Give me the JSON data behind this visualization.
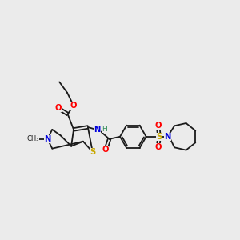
{
  "background_color": "#ebebeb",
  "bond_color": "#1a1a1a",
  "figsize": [
    3.0,
    3.0
  ],
  "dpi": 100,
  "colors": {
    "S": "#c8a800",
    "N": "#0000dd",
    "O": "#ff0000",
    "C": "#1a1a1a",
    "H": "#2e8b57",
    "default": "#1a1a1a"
  }
}
